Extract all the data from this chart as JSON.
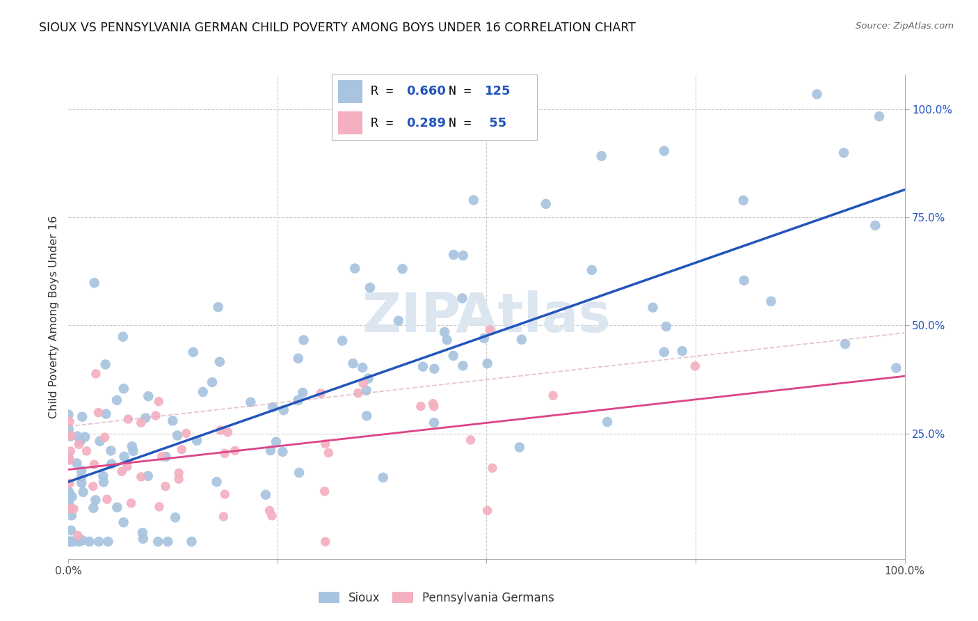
{
  "title": "SIOUX VS PENNSYLVANIA GERMAN CHILD POVERTY AMONG BOYS UNDER 16 CORRELATION CHART",
  "source": "Source: ZipAtlas.com",
  "ylabel": "Child Poverty Among Boys Under 16",
  "watermark": "ZIPAtlas",
  "sioux_R": 0.66,
  "sioux_N": 125,
  "pg_R": 0.289,
  "pg_N": 55,
  "sioux_color": "#a8c4e0",
  "sioux_line_color": "#2255bb",
  "pg_color": "#f4b0c0",
  "pg_line_color": "#dd4488",
  "pg_dash_color": "#ddaabb",
  "bg_color": "#ffffff",
  "grid_color": "#cccccc",
  "title_color": "#111111",
  "right_tick_color": "#2255bb",
  "watermark_color": "#dce6f0",
  "legend_border_color": "#bbbbbb"
}
